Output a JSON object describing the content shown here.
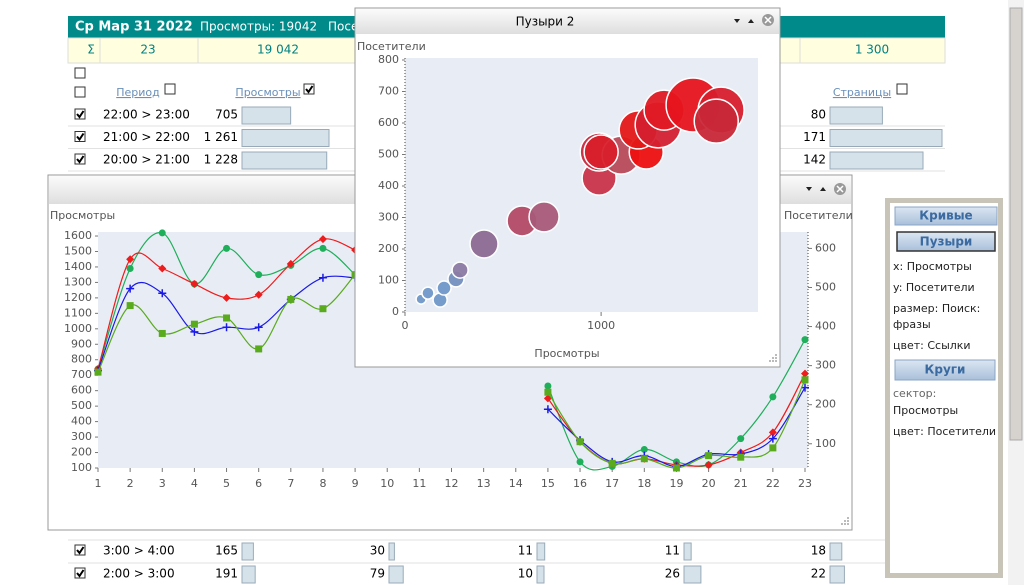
{
  "table": {
    "header": {
      "date": "Ср Мар 31 2022",
      "views": "Просмотры: 19042",
      "visitors": "Посет"
    },
    "sum": {
      "symbol": "Σ",
      "count": 23,
      "views": {
        "value": 19042,
        "label": "19 042"
      },
      "pages": {
        "value": 1300,
        "label": "1 300"
      }
    },
    "columns": [
      {
        "label": "Период",
        "checked": false
      },
      {
        "label": "Просмотры",
        "checked": true
      },
      {
        "label": "Страницы",
        "checked": false
      }
    ],
    "rows_top": [
      {
        "period": "22:00 > 23:00",
        "checked": true,
        "views": 705,
        "pages": 80
      },
      {
        "period": "21:00 > 22:00",
        "checked": true,
        "views": {
          "value": 1261,
          "label": "1 261"
        },
        "pages": 171
      },
      {
        "period": "20:00 > 21:00",
        "checked": true,
        "views": {
          "value": 1228,
          "label": "1 228"
        },
        "pages": 142
      }
    ],
    "rows_bottom": [
      {
        "period": "3:00 > 4:00",
        "checked": true,
        "cells": [
          165,
          30,
          11,
          11,
          18
        ]
      },
      {
        "period": "2:00 > 3:00",
        "checked": true,
        "cells": [
          191,
          79,
          10,
          26,
          22
        ]
      }
    ]
  },
  "panel": {
    "curves_button": "Кривые",
    "bubbles_button": "Пузыри",
    "x": "x: Просмотры",
    "y": "y: Посетители",
    "size": "размер: Поиск:",
    "size_cont": "фразы",
    "color": "цвет: Ссылки",
    "circles_button": "Круги",
    "sector": "сектор:",
    "sector_value": "Просмотры",
    "color2": "цвет: Посетители"
  },
  "chart_data": [
    {
      "type": "line",
      "ylabel": "Просмотры",
      "y2label": "Посетители",
      "x": [
        1,
        2,
        3,
        4,
        5,
        6,
        7,
        8,
        9,
        10,
        11,
        12,
        13,
        14,
        15,
        16,
        17,
        18,
        19,
        20,
        21,
        22,
        23
      ],
      "xlim": [
        1,
        23
      ],
      "xticks": [
        1,
        2,
        3,
        4,
        5,
        6,
        7,
        8,
        9,
        10,
        11,
        12,
        13,
        14,
        15,
        16,
        17,
        18,
        19,
        20,
        21,
        22,
        23
      ],
      "ylim": [
        100,
        1626
      ],
      "yticks": [
        100,
        200,
        300,
        400,
        500,
        600,
        700,
        800,
        900,
        1000,
        1100,
        1200,
        1300,
        1400,
        1500,
        1600
      ],
      "y2lim": [
        38,
        642
      ],
      "y2ticks": [
        100,
        200,
        300,
        400,
        500,
        600
      ],
      "series": [
        {
          "color": "#1fae5a",
          "marker": "circle",
          "values": [
            740,
            1390,
            1620,
            1290,
            1520,
            1350,
            1410,
            1520,
            1350,
            null,
            null,
            null,
            null,
            null,
            630,
            140,
            110,
            220,
            140,
            120,
            290,
            560,
            930
          ]
        },
        {
          "color": "#ee1c1c",
          "marker": "diamond",
          "values": [
            740,
            1450,
            1390,
            1290,
            1200,
            1220,
            1420,
            1580,
            1510,
            null,
            null,
            null,
            null,
            null,
            550,
            270,
            130,
            160,
            120,
            120,
            200,
            330,
            710
          ]
        },
        {
          "color": "#1a1ae6",
          "marker": "plus",
          "values": [
            730,
            1260,
            1230,
            980,
            1010,
            1010,
            1190,
            1330,
            1330,
            null,
            null,
            null,
            null,
            null,
            480,
            280,
            140,
            180,
            110,
            190,
            190,
            290,
            620
          ]
        },
        {
          "color": "#5aaa1e",
          "marker": "square",
          "values": [
            720,
            1150,
            970,
            1030,
            1070,
            870,
            1190,
            1130,
            1350,
            null,
            null,
            null,
            null,
            null,
            590,
            270,
            130,
            160,
            100,
            180,
            170,
            230,
            670
          ]
        }
      ]
    },
    {
      "type": "scatter",
      "title": "Пузыри 2",
      "xlabel": "Просмотры",
      "ylabel": "Посетители",
      "xlim": [
        0,
        1800
      ],
      "xticks": [
        0,
        1000
      ],
      "ylim": [
        0,
        800
      ],
      "yticks": [
        0,
        100,
        200,
        300,
        400,
        500,
        600,
        700,
        800
      ],
      "x": [
        82,
        117,
        179,
        199,
        260,
        281,
        403,
        597,
        709,
        990,
        990,
        1102,
        1000,
        1230,
        1189,
        1291,
        1321,
        1469,
        1612,
        1587
      ],
      "series": [
        {
          "values": [
            41,
            60,
            38,
            76,
            105,
            133,
            216,
            289,
            302,
            425,
            508,
            498,
            508,
            508,
            578,
            594,
            641,
            657,
            641,
            606
          ],
          "sizes": [
            5,
            6,
            7,
            7,
            8,
            8,
            14,
            15,
            15,
            17,
            19,
            19,
            17,
            17,
            19,
            23,
            20,
            27,
            23,
            22
          ],
          "colors": [
            "#6f98c8",
            "#6f98c8",
            "#6f98c8",
            "#6f98c8",
            "#7590c0",
            "#8c7aa3",
            "#8c6a92",
            "#b34a66",
            "#a85a78",
            "#c8344a",
            "#c8283e",
            "#b84a5a",
            "#d8202c",
            "#ee1010",
            "#e41818",
            "#d42030",
            "#e01a24",
            "#e6141e",
            "#d81e2c",
            "#c82838"
          ]
        }
      ]
    }
  ]
}
